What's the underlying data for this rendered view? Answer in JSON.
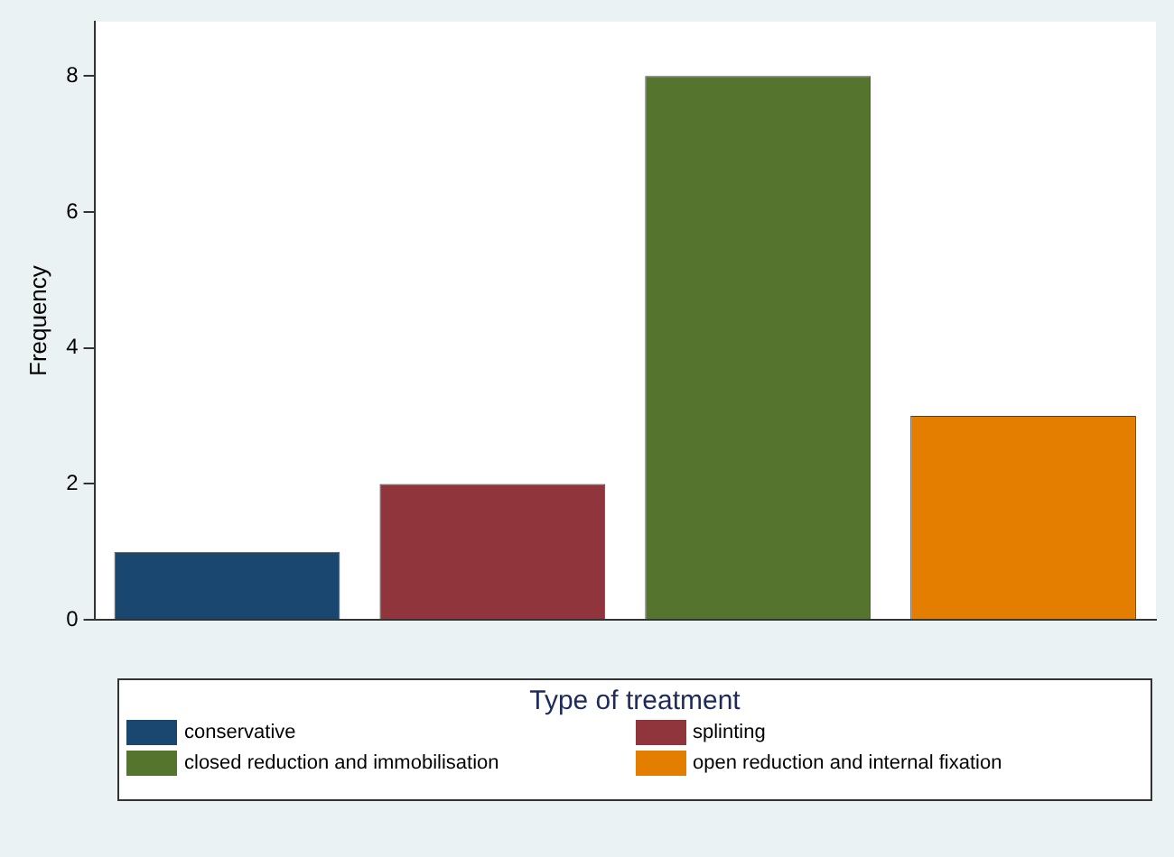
{
  "chart_data": {
    "type": "bar",
    "ylabel": "Frequency",
    "legend_title": "Type of treatment",
    "categories": [
      null
    ],
    "series": [
      {
        "name": "conservative",
        "color": "#1a476f",
        "values": [
          1
        ]
      },
      {
        "name": "splinting",
        "color": "#90353b",
        "values": [
          2
        ]
      },
      {
        "name": "closed reduction and immobilisation",
        "color": "#55752f",
        "values": [
          8
        ]
      },
      {
        "name": "open reduction and internal fixation",
        "color": "#e37e00",
        "values": [
          3
        ]
      }
    ],
    "ylim": [
      0,
      8.8
    ],
    "yticks": [
      0,
      2,
      4,
      6,
      8
    ],
    "grid": false,
    "legend": "bottom"
  }
}
